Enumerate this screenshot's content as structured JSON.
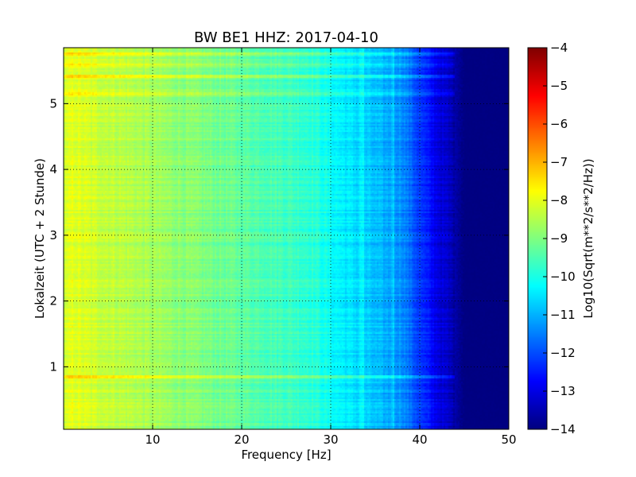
{
  "chart_data": {
    "type": "heatmap",
    "title": "BW BE1 HHZ: 2017-04-10",
    "xlabel": "Frequency [Hz]",
    "ylabel": "Lokalzeit (UTC + 2 Stunde)",
    "xlim": [
      0,
      50
    ],
    "ylim": [
      5.85,
      0.05
    ],
    "x_ticks": [
      10,
      20,
      30,
      40,
      50
    ],
    "x_tick_labels": [
      "10",
      "20",
      "30",
      "40",
      "50"
    ],
    "y_ticks": [
      1,
      2,
      3,
      4,
      5
    ],
    "y_tick_labels": [
      "1",
      "2",
      "3",
      "4",
      "5"
    ],
    "grid": true,
    "colormap": "jet",
    "colorbar": {
      "label": "Log10(Sqrt(m**2/s**2/Hz))",
      "range": [
        -14,
        -4
      ],
      "ticks": [
        -14,
        -13,
        -12,
        -11,
        -10,
        -9,
        -8,
        -7,
        -6,
        -5,
        -4
      ],
      "tick_labels": [
        "−14",
        "−13",
        "−12",
        "−11",
        "−10",
        "−9",
        "−8",
        "−7",
        "−6",
        "−5",
        "−4"
      ]
    },
    "spectral_profile": {
      "frequency_hz": [
        0,
        1,
        3,
        8,
        12,
        20,
        25,
        28,
        30,
        33,
        35,
        38,
        40,
        42,
        44,
        45,
        50
      ],
      "level": [
        -8.3,
        -8.0,
        -8.2,
        -8.5,
        -8.8,
        -9.3,
        -9.6,
        -9.8,
        -10.2,
        -10.6,
        -10.9,
        -11.3,
        -12.2,
        -13.0,
        -13.6,
        -14.0,
        -14.0
      ]
    },
    "bright_bands": [
      {
        "time": 0.85,
        "strength": 0.6
      },
      {
        "time": 5.15,
        "strength": 0.5
      },
      {
        "time": 5.42,
        "strength": 0.6
      },
      {
        "time": 5.58,
        "strength": 0.4
      },
      {
        "time": 5.75,
        "strength": 0.5
      }
    ],
    "spectral_lines_hz": [
      33.5,
      37
    ]
  }
}
